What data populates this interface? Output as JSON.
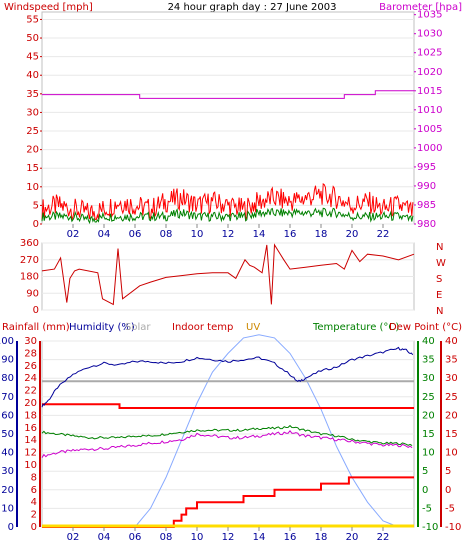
{
  "header": {
    "left_label": "Windspeed [mph]",
    "center_title": "24 hour graph day : 27 June 2003",
    "right_label": "Barometer [hpa]"
  },
  "colors": {
    "windspeed": "#ff0000",
    "gust": "#ff0000",
    "avg_wind": "#008000",
    "barometer": "#cc00cc",
    "winddir": "#cc0000",
    "humidity": "#000099",
    "solar": "#aaaaaa",
    "indoor": "#ff0000",
    "uv": "#cc8800",
    "temperature": "#008000",
    "dewpoint": "#cc00cc",
    "rainfall": "#ff0000",
    "solar_curve": "#88aaff",
    "uv_line": "#ffdd00",
    "label_red": "#cc0000",
    "label_blue": "#000099",
    "label_green": "#008000"
  },
  "chart_data": [
    {
      "type": "line",
      "title": "24 hour graph day : 27 June 2003",
      "x_ticks": [
        "02",
        "04",
        "06",
        "08",
        "10",
        "12",
        "14",
        "16",
        "18",
        "20",
        "22"
      ],
      "y_left": {
        "label": "Windspeed [mph]",
        "ticks": [
          0,
          5,
          10,
          15,
          20,
          25,
          30,
          35,
          40,
          45,
          50,
          55
        ],
        "range": [
          0,
          57
        ]
      },
      "y_right": {
        "label": "Barometer [hpa]",
        "ticks": [
          980,
          985,
          990,
          995,
          1000,
          1005,
          1010,
          1015,
          1020,
          1025,
          1030,
          1035
        ],
        "range": [
          980,
          1035.7
        ]
      },
      "barometer_series": {
        "x": [
          0,
          6.3,
          6.3,
          19.5,
          19.5,
          21.5,
          21.5,
          24
        ],
        "y": [
          1014,
          1014,
          1013,
          1013,
          1014,
          1014,
          1015,
          1015
        ]
      },
      "gust_series": {
        "x": [
          0,
          1,
          2,
          3,
          4,
          5,
          6,
          7,
          8,
          9,
          10,
          11,
          12,
          13,
          14,
          15,
          16,
          17,
          18,
          19,
          20,
          21,
          22,
          23,
          24
        ],
        "y": [
          4,
          5,
          4,
          3,
          4,
          6,
          5,
          4,
          6,
          7,
          5,
          6,
          5,
          4,
          6,
          7,
          6,
          7,
          8,
          7,
          5,
          6,
          4,
          5,
          3
        ]
      },
      "avg_series": {
        "x": [
          0,
          1,
          2,
          3,
          4,
          5,
          6,
          7,
          8,
          9,
          10,
          11,
          12,
          13,
          14,
          15,
          16,
          17,
          18,
          19,
          20,
          21,
          22,
          23,
          24
        ],
        "y": [
          2,
          2,
          2,
          1,
          2,
          2,
          2,
          2,
          2,
          3,
          2,
          2,
          2,
          2,
          3,
          3,
          3,
          3,
          3,
          3,
          2,
          2,
          2,
          2,
          1
        ]
      }
    },
    {
      "type": "line",
      "title": "",
      "y_left": {
        "ticks": [
          0,
          90,
          180,
          270,
          360
        ],
        "range": [
          0,
          360
        ]
      },
      "y_right_labels": [
        "N",
        "W",
        "S",
        "E",
        "N"
      ],
      "winddir_series": {
        "x": [
          0,
          0.8,
          1.2,
          1.6,
          1.8,
          2.1,
          2.4,
          3.6,
          3.9,
          4.6,
          4.9,
          5.2,
          6.3,
          7,
          8,
          9,
          10,
          11,
          12,
          12.5,
          13.1,
          13.4,
          13.7,
          14.2,
          14.5,
          14.8,
          15,
          15.6,
          16,
          17,
          18,
          19,
          19.5,
          20,
          20.5,
          21,
          22,
          23,
          24
        ],
        "y": [
          210,
          220,
          280,
          40,
          170,
          210,
          220,
          200,
          60,
          30,
          330,
          60,
          130,
          150,
          175,
          185,
          195,
          200,
          200,
          170,
          270,
          240,
          230,
          200,
          350,
          30,
          350,
          270,
          220,
          230,
          240,
          250,
          220,
          320,
          260,
          300,
          290,
          270,
          300
        ]
      }
    },
    {
      "type": "line",
      "title": "",
      "legend": [
        "Rainfall (mm)",
        "Humidity (%)",
        "Solar",
        "Indoor temp",
        "UV",
        "Temperature (°C)",
        "Dew Point (°C)"
      ],
      "y_axes": {
        "humidity": {
          "ticks": [
            0,
            10,
            20,
            30,
            40,
            50,
            60,
            70,
            80,
            90,
            100
          ],
          "range": [
            0,
            100
          ]
        },
        "rainfall": {
          "ticks": [
            0,
            2,
            4,
            6,
            8,
            10,
            12,
            14,
            16,
            18,
            20,
            22,
            24,
            26,
            28,
            30
          ],
          "range": [
            0,
            30
          ]
        },
        "temperature": {
          "ticks": [
            -10,
            -5,
            0,
            5,
            10,
            15,
            20,
            25,
            30,
            35,
            40
          ],
          "range": [
            -10,
            40
          ]
        },
        "dewpoint": {
          "ticks": [
            -10,
            -5,
            0,
            5,
            10,
            15,
            20,
            25,
            30,
            35,
            40
          ],
          "range": [
            -10,
            40
          ]
        }
      },
      "humidity_series": {
        "x": [
          0,
          0.4,
          1,
          2,
          3,
          4,
          5,
          6,
          7,
          8,
          9,
          10,
          11,
          12,
          13,
          14,
          15,
          16,
          16.5,
          17,
          18,
          19,
          20,
          21,
          22,
          23,
          23.5,
          24
        ],
        "y": [
          65,
          68,
          75,
          82,
          86,
          88,
          87,
          89,
          89,
          88,
          89,
          91,
          90,
          89,
          90,
          91,
          88,
          82,
          78,
          80,
          84,
          86,
          90,
          92,
          94,
          96,
          95,
          92
        ]
      },
      "solar_series": {
        "x": [
          0,
          24
        ],
        "y": [
          23.5,
          23.5
        ]
      },
      "indoor_series": {
        "x": [
          0,
          5,
          5,
          24
        ],
        "y": [
          23,
          23,
          22,
          22
        ]
      },
      "temperature_series": {
        "x": [
          0,
          1,
          2,
          3,
          4,
          5,
          6,
          7,
          8,
          9,
          10,
          11,
          12,
          13,
          14,
          15,
          16,
          17,
          18,
          19,
          20,
          21,
          22,
          23,
          24
        ],
        "y": [
          15.5,
          15,
          14.5,
          14,
          14,
          14,
          14.5,
          14.5,
          15,
          15.5,
          16,
          16,
          16,
          16,
          16.5,
          16.5,
          17,
          16,
          15,
          14.5,
          13.5,
          13,
          12.5,
          12.5,
          12
        ]
      },
      "dewpoint_series": {
        "x": [
          0,
          1,
          2,
          3,
          4,
          5,
          6,
          7,
          8,
          9,
          10,
          11,
          12,
          13,
          14,
          15,
          16,
          17,
          18,
          19,
          20,
          21,
          22,
          23,
          24
        ],
        "y": [
          9,
          10,
          10.5,
          11,
          11,
          11.5,
          12,
          12.5,
          13,
          13.5,
          15,
          14.5,
          14,
          14,
          14.5,
          15,
          15.5,
          14.5,
          14,
          13.5,
          13,
          12.5,
          12,
          12,
          11.5
        ]
      },
      "solar_curve_series": {
        "x": [
          6,
          7,
          8,
          9,
          10,
          11,
          12,
          13,
          14,
          15,
          16,
          17,
          18,
          19,
          20,
          21,
          22,
          23
        ],
        "y": [
          0,
          3,
          8,
          14,
          20,
          25,
          28,
          30.5,
          31,
          30.5,
          28,
          24,
          19,
          13,
          8,
          4,
          1,
          0
        ]
      },
      "rainfall_series": {
        "x": [
          0,
          8.5,
          8.5,
          9,
          9,
          9.3,
          9.3,
          10,
          10,
          13,
          13,
          15,
          15,
          18,
          18,
          19.8,
          19.8,
          24
        ],
        "y": [
          0,
          0,
          1,
          1,
          2,
          2,
          3,
          3,
          4,
          4,
          5,
          5,
          6,
          6,
          7,
          7,
          8,
          8
        ]
      },
      "uv_series": {
        "x": [
          0,
          24
        ],
        "y": [
          0,
          0
        ]
      }
    }
  ]
}
